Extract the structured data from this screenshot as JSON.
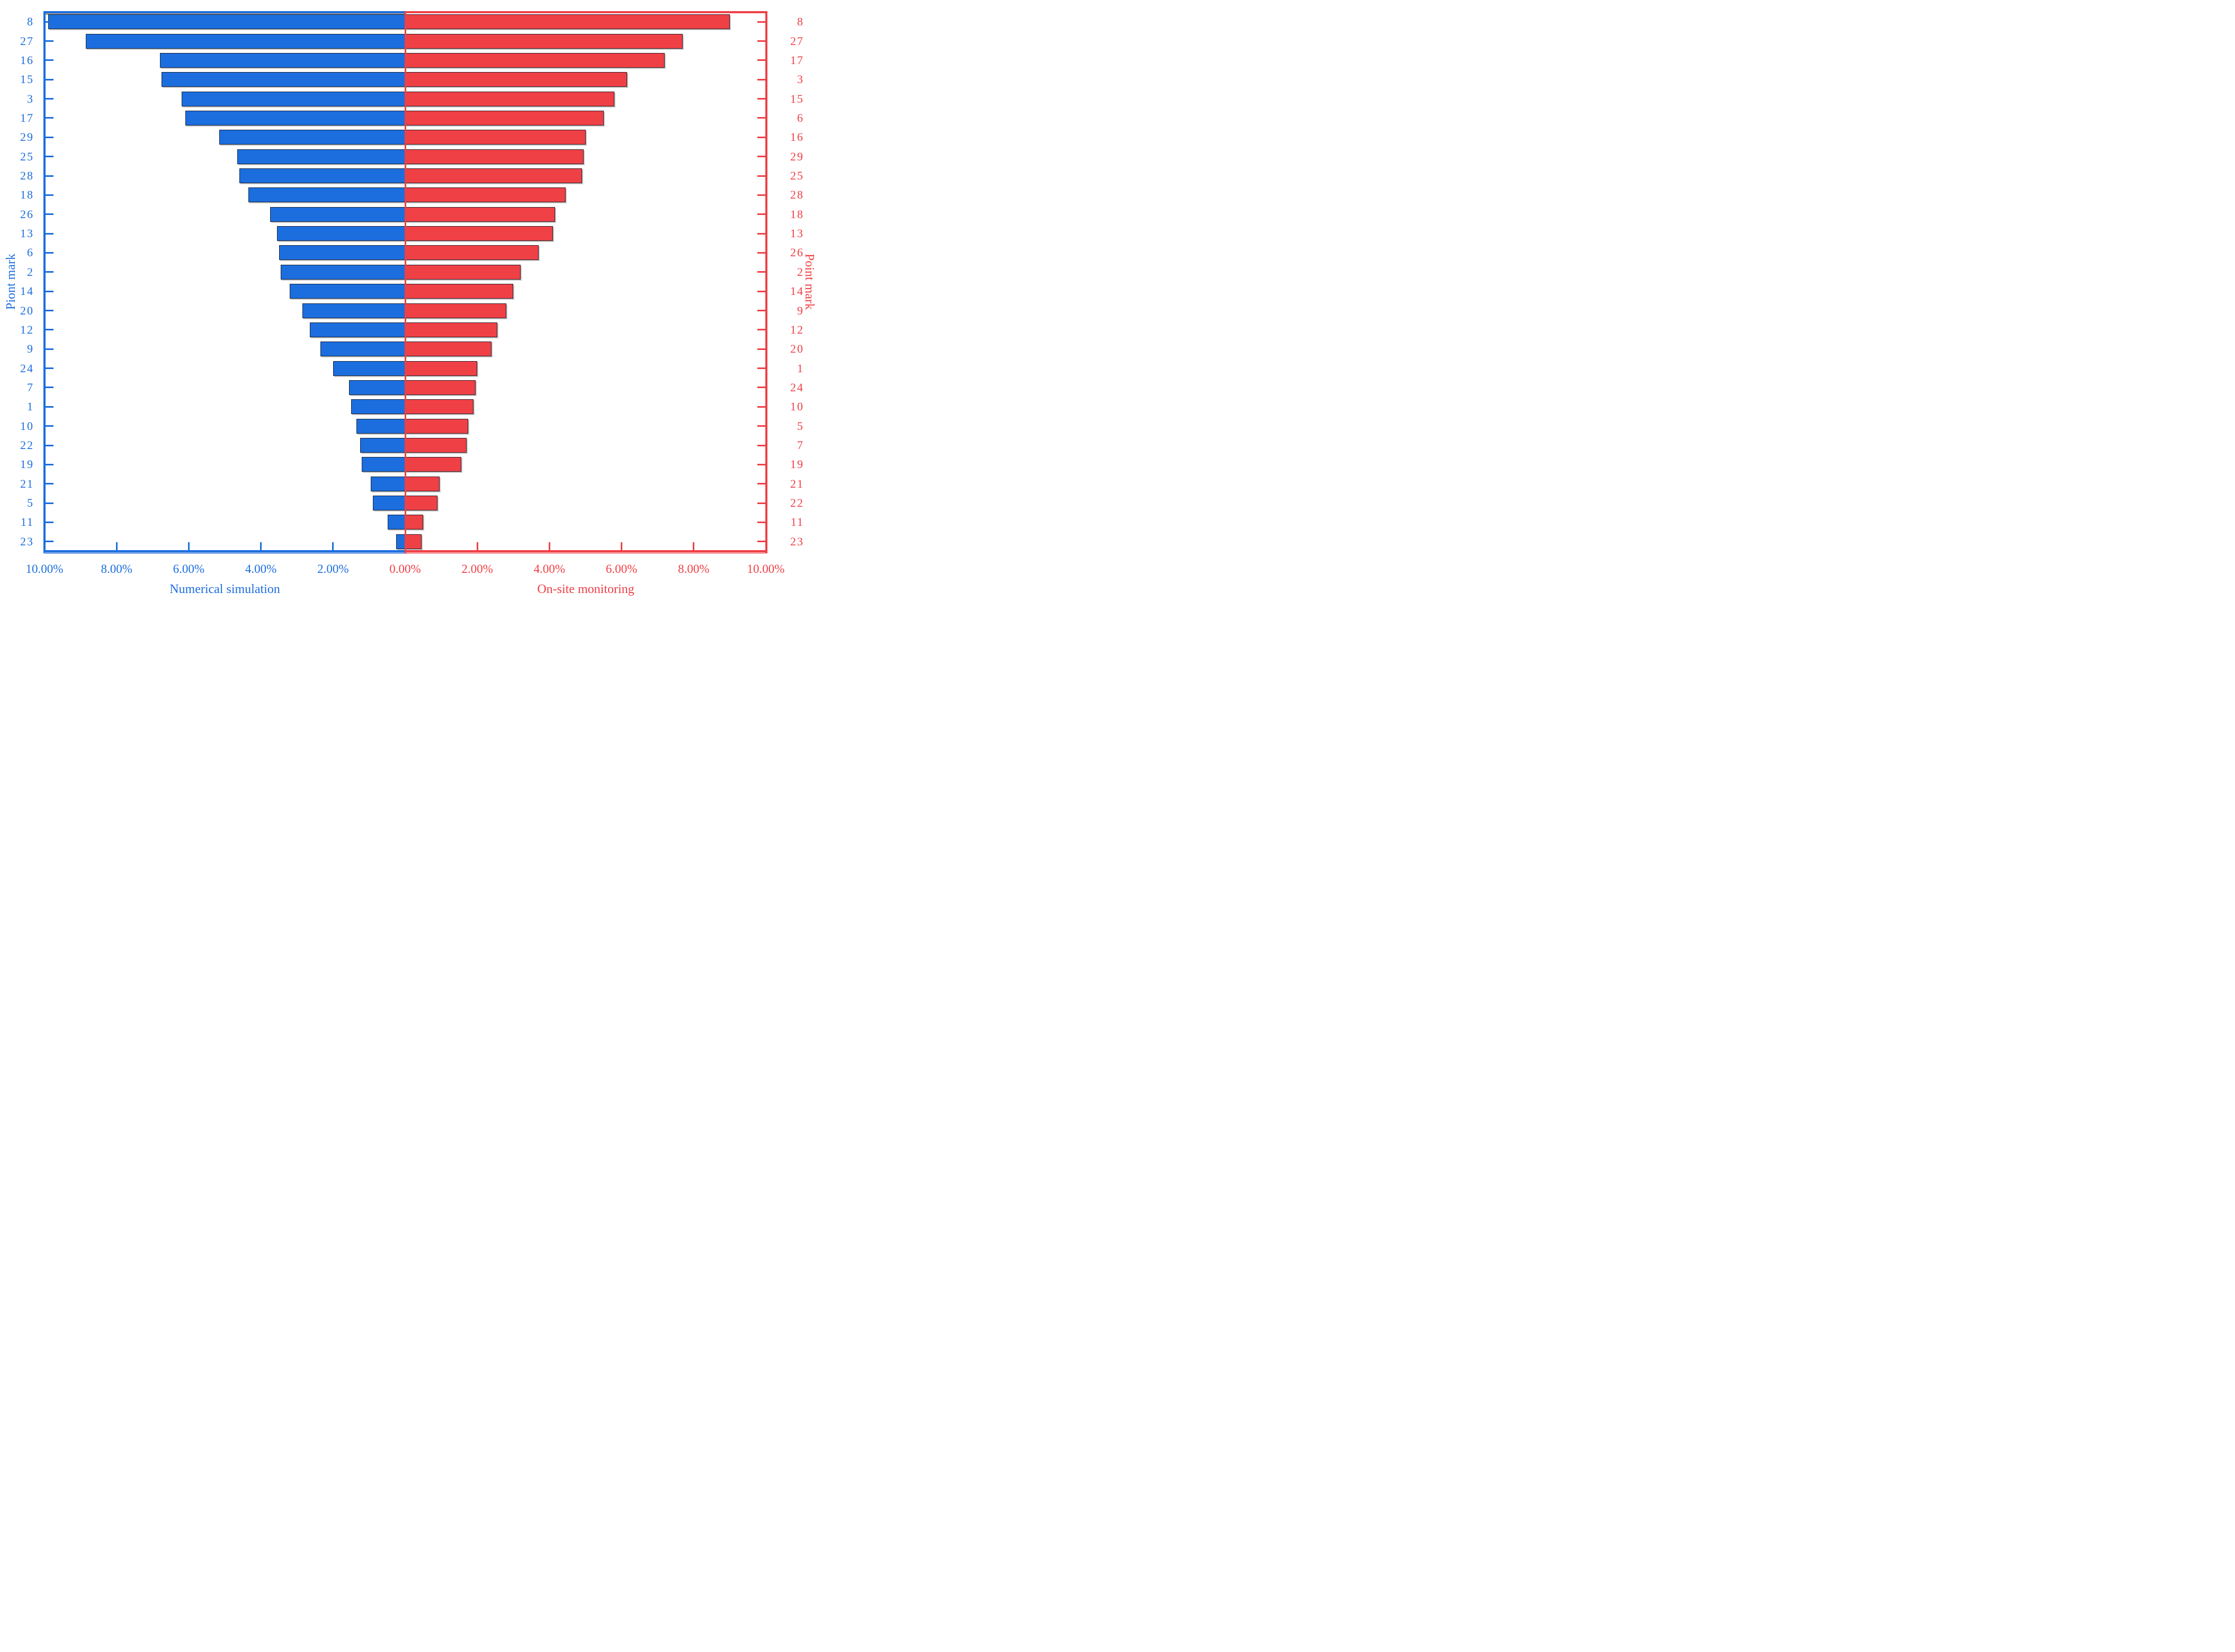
{
  "chart_data": {
    "type": "bar",
    "subtype": "diverging-tornado",
    "unit": "percent",
    "grid": false,
    "legend": false,
    "x_axis": {
      "min_percent": 0,
      "max_percent": 10,
      "left_tick_labels": [
        "10.00%",
        "8.00%",
        "6.00%",
        "4.00%",
        "2.00%"
      ],
      "center_tick_label": "0.00%",
      "right_tick_labels": [
        "2.00%",
        "4.00%",
        "6.00%",
        "8.00%",
        "10.00%"
      ]
    },
    "left_series": {
      "name": "Numerical simulation",
      "axis_title": "Piont mark",
      "color": "#1c6ede",
      "points": [
        {
          "label": "8",
          "value": 9.9
        },
        {
          "label": "27",
          "value": 8.85
        },
        {
          "label": "16",
          "value": 6.8
        },
        {
          "label": "15",
          "value": 6.75
        },
        {
          "label": "3",
          "value": 6.2
        },
        {
          "label": "17",
          "value": 6.1
        },
        {
          "label": "29",
          "value": 5.15
        },
        {
          "label": "25",
          "value": 4.65
        },
        {
          "label": "28",
          "value": 4.6
        },
        {
          "label": "18",
          "value": 4.35
        },
        {
          "label": "26",
          "value": 3.75
        },
        {
          "label": "13",
          "value": 3.55
        },
        {
          "label": "6",
          "value": 3.5
        },
        {
          "label": "2",
          "value": 3.45
        },
        {
          "label": "14",
          "value": 3.2
        },
        {
          "label": "20",
          "value": 2.85
        },
        {
          "label": "12",
          "value": 2.65
        },
        {
          "label": "9",
          "value": 2.35
        },
        {
          "label": "24",
          "value": 2.0
        },
        {
          "label": "7",
          "value": 1.55
        },
        {
          "label": "1",
          "value": 1.5
        },
        {
          "label": "10",
          "value": 1.35
        },
        {
          "label": "22",
          "value": 1.25
        },
        {
          "label": "19",
          "value": 1.2
        },
        {
          "label": "21",
          "value": 0.95
        },
        {
          "label": "5",
          "value": 0.9
        },
        {
          "label": "11",
          "value": 0.48
        },
        {
          "label": "23",
          "value": 0.25
        }
      ]
    },
    "right_series": {
      "name": "On-site monitoring",
      "axis_title": "Point mark",
      "color": "#ef4046",
      "points": [
        {
          "label": "8",
          "value": 9.0
        },
        {
          "label": "27",
          "value": 7.7
        },
        {
          "label": "17",
          "value": 7.2
        },
        {
          "label": "3",
          "value": 6.15
        },
        {
          "label": "15",
          "value": 5.8
        },
        {
          "label": "6",
          "value": 5.5
        },
        {
          "label": "16",
          "value": 5.0
        },
        {
          "label": "29",
          "value": 4.95
        },
        {
          "label": "25",
          "value": 4.9
        },
        {
          "label": "28",
          "value": 4.45
        },
        {
          "label": "18",
          "value": 4.15
        },
        {
          "label": "13",
          "value": 4.1
        },
        {
          "label": "26",
          "value": 3.7
        },
        {
          "label": "2",
          "value": 3.2
        },
        {
          "label": "14",
          "value": 3.0
        },
        {
          "label": "9",
          "value": 2.8
        },
        {
          "label": "12",
          "value": 2.55
        },
        {
          "label": "20",
          "value": 2.4
        },
        {
          "label": "1",
          "value": 2.0
        },
        {
          "label": "24",
          "value": 1.95
        },
        {
          "label": "10",
          "value": 1.9
        },
        {
          "label": "5",
          "value": 1.75
        },
        {
          "label": "7",
          "value": 1.7
        },
        {
          "label": "19",
          "value": 1.55
        },
        {
          "label": "21",
          "value": 0.95
        },
        {
          "label": "22",
          "value": 0.9
        },
        {
          "label": "11",
          "value": 0.5
        },
        {
          "label": "23",
          "value": 0.45
        }
      ]
    },
    "colors": {
      "blue": "#1c6ede",
      "red": "#ef4046",
      "blue_light_shadow": "#7aa6ec",
      "red_light_shadow": "#f79ba0",
      "gray_shadow": "#9a9a9a",
      "bar_outline": "#12161e"
    }
  }
}
